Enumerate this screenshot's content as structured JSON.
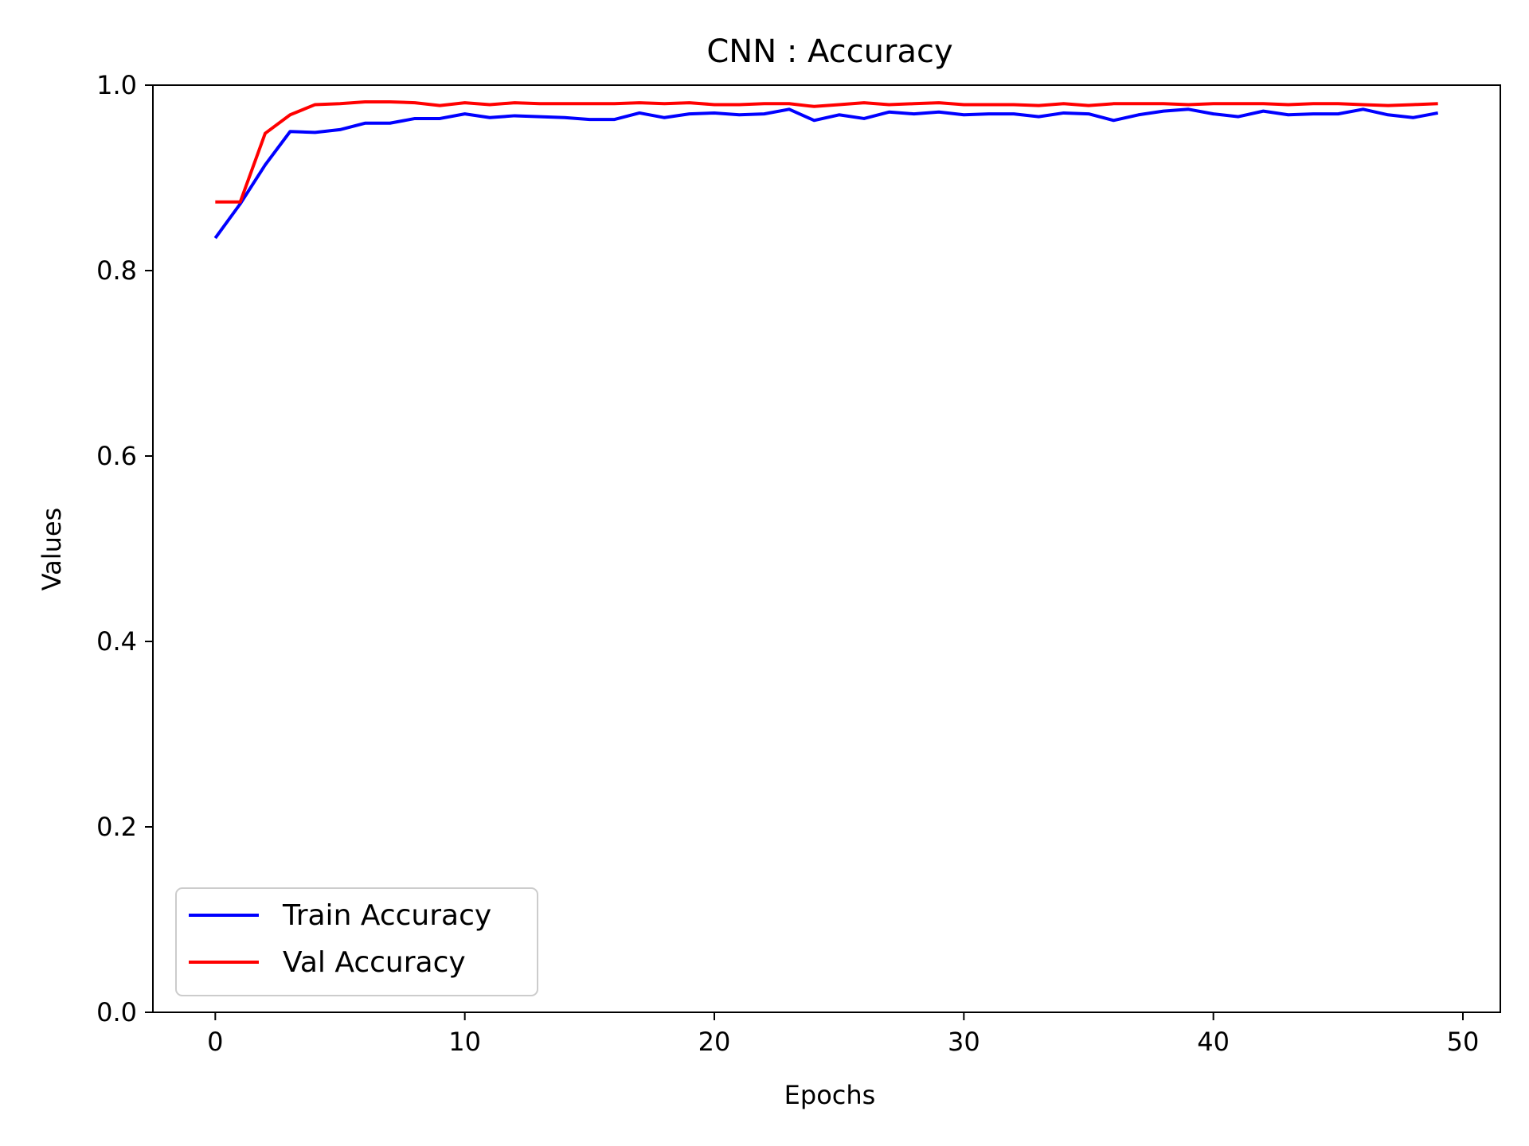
{
  "chart_data": {
    "type": "line",
    "title": "CNN : Accuracy",
    "xlabel": "Epochs",
    "ylabel": "Values",
    "xlim": [
      -2.5,
      51.5
    ],
    "ylim": [
      0.0,
      1.0
    ],
    "x_ticks": [
      0,
      10,
      20,
      30,
      40,
      50
    ],
    "y_ticks": [
      0.0,
      0.2,
      0.4,
      0.6,
      0.8,
      1.0
    ],
    "x_tick_labels": [
      "0",
      "10",
      "20",
      "30",
      "40",
      "50"
    ],
    "y_tick_labels": [
      "0.0",
      "0.2",
      "0.4",
      "0.6",
      "0.8",
      "1.0"
    ],
    "grid": false,
    "legend_position": "lower-left",
    "x": [
      0,
      1,
      2,
      3,
      4,
      5,
      6,
      7,
      8,
      9,
      10,
      11,
      12,
      13,
      14,
      15,
      16,
      17,
      18,
      19,
      20,
      21,
      22,
      23,
      24,
      25,
      26,
      27,
      28,
      29,
      30,
      31,
      32,
      33,
      34,
      35,
      36,
      37,
      38,
      39,
      40,
      41,
      42,
      43,
      44,
      45,
      46,
      47,
      48,
      49
    ],
    "series": [
      {
        "name": "Train Accuracy",
        "color": "#0000ff",
        "values": [
          0.835,
          0.872,
          0.914,
          0.95,
          0.949,
          0.952,
          0.959,
          0.959,
          0.964,
          0.964,
          0.969,
          0.965,
          0.967,
          0.966,
          0.965,
          0.963,
          0.963,
          0.97,
          0.965,
          0.969,
          0.97,
          0.968,
          0.969,
          0.974,
          0.962,
          0.968,
          0.964,
          0.971,
          0.969,
          0.971,
          0.968,
          0.969,
          0.969,
          0.966,
          0.97,
          0.969,
          0.962,
          0.968,
          0.972,
          0.974,
          0.969,
          0.966,
          0.972,
          0.968,
          0.969,
          0.969,
          0.974,
          0.968,
          0.965,
          0.97
        ]
      },
      {
        "name": "Val Accuracy",
        "color": "#ff0000",
        "values": [
          0.874,
          0.874,
          0.948,
          0.968,
          0.979,
          0.98,
          0.982,
          0.982,
          0.981,
          0.978,
          0.981,
          0.979,
          0.981,
          0.98,
          0.98,
          0.98,
          0.98,
          0.981,
          0.98,
          0.981,
          0.979,
          0.979,
          0.98,
          0.98,
          0.977,
          0.979,
          0.981,
          0.979,
          0.98,
          0.981,
          0.979,
          0.979,
          0.979,
          0.978,
          0.98,
          0.978,
          0.98,
          0.98,
          0.98,
          0.979,
          0.98,
          0.98,
          0.98,
          0.979,
          0.98,
          0.98,
          0.979,
          0.978,
          0.979,
          0.98
        ]
      }
    ]
  }
}
